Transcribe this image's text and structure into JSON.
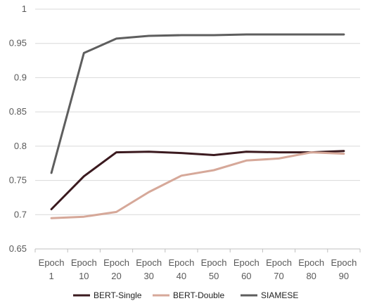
{
  "chart_data": {
    "type": "line",
    "title": "",
    "xlabel": "",
    "ylabel": "",
    "categories": [
      [
        "Epoch",
        "1"
      ],
      [
        "Epoch",
        "10"
      ],
      [
        "Epoch",
        "20"
      ],
      [
        "Epoch",
        "30"
      ],
      [
        "Epoch",
        "40"
      ],
      [
        "Epoch",
        "50"
      ],
      [
        "Epoch",
        "60"
      ],
      [
        "Epoch",
        "70"
      ],
      [
        "Epoch",
        "80"
      ],
      [
        "Epoch",
        "90"
      ]
    ],
    "ylim": [
      0.65,
      1
    ],
    "yticks": [
      0.65,
      0.7,
      0.75,
      0.8,
      0.85,
      0.9,
      0.95,
      1
    ],
    "ytick_labels": [
      "0.65",
      "0.7",
      "0.75",
      "0.8",
      "0.85",
      "0.9",
      "0.95",
      "1"
    ],
    "grid": "horizontal",
    "legend_position": "bottom",
    "series": [
      {
        "name": "BERT-Single",
        "color": "#3b1a1f",
        "values": [
          0.708,
          0.756,
          0.791,
          0.792,
          0.79,
          0.787,
          0.792,
          0.791,
          0.791,
          0.793
        ]
      },
      {
        "name": "BERT-Double",
        "color": "#d6a899",
        "values": [
          0.695,
          0.697,
          0.704,
          0.733,
          0.757,
          0.765,
          0.779,
          0.782,
          0.791,
          0.789
        ]
      },
      {
        "name": "SIAMESE",
        "color": "#5e5e5e",
        "values": [
          0.761,
          0.936,
          0.957,
          0.961,
          0.962,
          0.962,
          0.963,
          0.963,
          0.963,
          0.963
        ]
      }
    ]
  }
}
